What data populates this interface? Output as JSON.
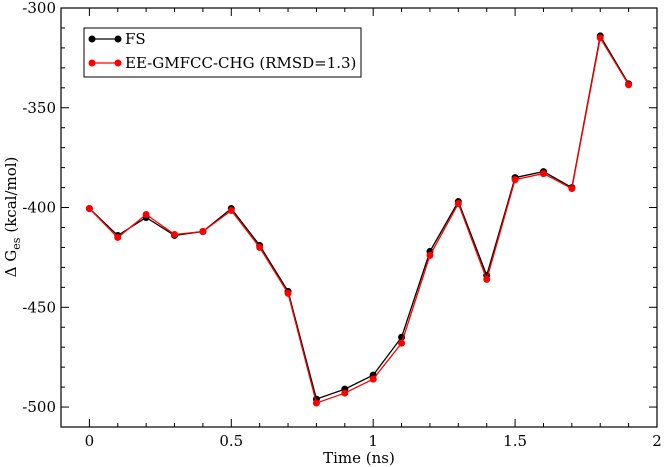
{
  "chart_data": {
    "type": "line",
    "xlabel": "Time (ns)",
    "ylabel": {
      "prefix": "Δ G",
      "subscript": "es",
      "suffix": "(kcal/mol)"
    },
    "xlim": [
      -0.1,
      2.0
    ],
    "ylim": [
      -510,
      -300
    ],
    "xticks": [
      0,
      0.5,
      1,
      1.5,
      2
    ],
    "xtick_labels": [
      "0",
      "0.5",
      "1",
      "1.5",
      "2"
    ],
    "yticks": [
      -500,
      -450,
      -400,
      -350,
      -300
    ],
    "ytick_labels": [
      "-500",
      "-450",
      "-400",
      "-350",
      "-300"
    ],
    "grid": false,
    "legend_position": "top-left",
    "x": [
      0,
      0.1,
      0.2,
      0.3,
      0.4,
      0.5,
      0.6,
      0.7,
      0.8,
      0.9,
      1.0,
      1.1,
      1.2,
      1.3,
      1.4,
      1.5,
      1.6,
      1.7,
      1.8,
      1.9
    ],
    "series": [
      {
        "name": "FS",
        "color": "#000000",
        "values": [
          -400.5,
          -414,
          -405,
          -414,
          -412,
          -400.5,
          -419,
          -442,
          -496,
          -491,
          -484,
          -465,
          -422,
          -397,
          -434,
          -385,
          -382,
          -390,
          -314,
          -338
        ]
      },
      {
        "name": "EE-GMFCC-CHG (RMSD=1.3)",
        "color": "#ff0000",
        "values": [
          -400.5,
          -415,
          -403.5,
          -413.5,
          -412,
          -401.5,
          -420,
          -443,
          -498,
          -493,
          -486,
          -468,
          -424,
          -398,
          -436,
          -386,
          -383,
          -390.5,
          -315,
          -338.5
        ]
      }
    ]
  }
}
